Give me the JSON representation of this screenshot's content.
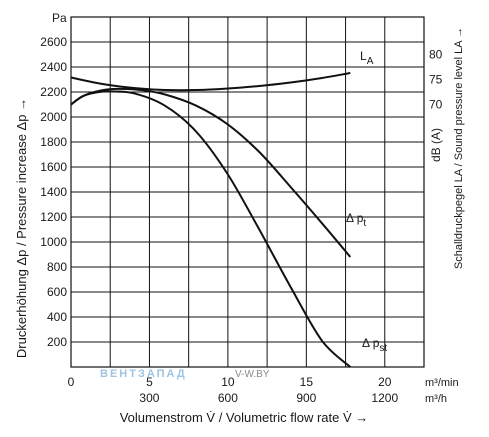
{
  "chart_data": {
    "type": "line",
    "y_unit": "Pa",
    "y_ticks": [
      200,
      400,
      600,
      800,
      1000,
      1200,
      1400,
      1600,
      1800,
      2000,
      2200,
      2400,
      2600
    ],
    "ylim": [
      0,
      2800
    ],
    "x_ticks_min": [
      0,
      5,
      10,
      15,
      20
    ],
    "x_ticks_h": [
      300,
      600,
      900,
      1200
    ],
    "xlim_min": [
      0,
      22.5
    ],
    "x_unit_min": "m³/min",
    "x_unit_h": "m³/h",
    "ylabel": "Druckerhöhung Δp / Pressure increase Δp →",
    "xlabel": "Volumenstrom V̇ / Volumetric flow rate V̇ →",
    "y2_unit": "dB (A)",
    "y2_ticks": [
      70,
      75,
      80
    ],
    "y2_label": "Schalldruckpegel LA / Sound pressure level LA →",
    "grid": true,
    "series": [
      {
        "name": "Δ pt",
        "label_main": "Δ p",
        "label_sub": "t",
        "axis": "left",
        "x": [
          0,
          0.8,
          1.8,
          3,
          4.5,
          6,
          8,
          10,
          12,
          14,
          16,
          17.8
        ],
        "y": [
          2100,
          2170,
          2210,
          2225,
          2215,
          2180,
          2090,
          1940,
          1720,
          1440,
          1150,
          880
        ]
      },
      {
        "name": "Δ pst",
        "label_main": "Δ p",
        "label_sub": "st",
        "axis": "left",
        "x": [
          0,
          0.8,
          1.8,
          2.5,
          4,
          6,
          8,
          10,
          12,
          14,
          16,
          17.8
        ],
        "y": [
          2100,
          2170,
          2200,
          2205,
          2190,
          2090,
          1880,
          1540,
          1100,
          640,
          210,
          0
        ]
      },
      {
        "name": "LA",
        "label_main": "L",
        "label_sub": "A",
        "axis": "right",
        "x": [
          0,
          2,
          4,
          6,
          8,
          10,
          12,
          14,
          16,
          17.8
        ],
        "y_db": [
          75.4,
          74.1,
          73.3,
          72.9,
          72.9,
          73.2,
          73.7,
          74.4,
          75.3,
          76.3
        ]
      }
    ]
  },
  "watermark": {
    "brand": "ВЕНТЗАПАД",
    "site": "V-W.BY"
  }
}
